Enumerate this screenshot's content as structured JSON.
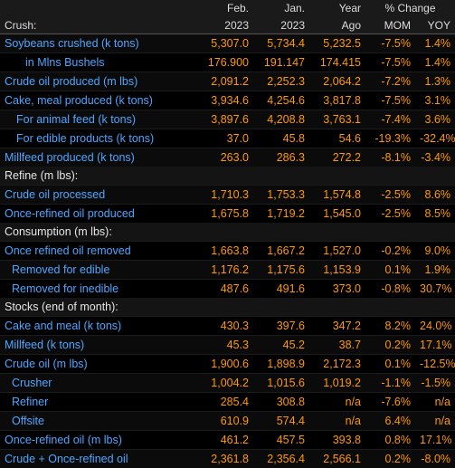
{
  "header": {
    "row1": [
      "",
      "Feb.",
      "Jan.",
      "Year",
      "% Change",
      ""
    ],
    "row2": [
      "Crush:",
      "2023",
      "2023",
      "Ago",
      "MOM",
      "YOY"
    ]
  },
  "rows": [
    {
      "type": "data",
      "indent": 0,
      "label": "Soybeans crushed (k tons)",
      "v": [
        "5,307.0",
        "5,734.4",
        "5,232.5",
        "-7.5%",
        "1.4%"
      ]
    },
    {
      "type": "data",
      "indent": 1,
      "label": "in Mlns Bushels",
      "v": [
        "176.900",
        "191.147",
        "174.415",
        "-7.5%",
        "1.4%"
      ]
    },
    {
      "type": "data",
      "indent": 0,
      "label": "Crude oil produced (m lbs)",
      "v": [
        "2,091.2",
        "2,252.3",
        "2,064.2",
        "-7.2%",
        "1.3%"
      ]
    },
    {
      "type": "data",
      "indent": 0,
      "label": "Cake, meal produced (k tons)",
      "v": [
        "3,934.6",
        "4,254.6",
        "3,817.8",
        "-7.5%",
        "3.1%"
      ]
    },
    {
      "type": "data",
      "indent": 2,
      "label": "For animal feed (k tons)",
      "v": [
        "3,897.6",
        "4,208.8",
        "3,763.1",
        "-7.4%",
        "3.6%"
      ]
    },
    {
      "type": "data",
      "indent": 2,
      "label": "For edible products (k tons)",
      "v": [
        "37.0",
        "45.8",
        "54.6",
        "-19.3%",
        "-32.4%"
      ]
    },
    {
      "type": "data",
      "indent": 0,
      "label": "Millfeed produced (k tons)",
      "v": [
        "263.0",
        "286.3",
        "272.2",
        "-8.1%",
        "-3.4%"
      ]
    },
    {
      "type": "section",
      "label": "Refine (m lbs):"
    },
    {
      "type": "data",
      "indent": 0,
      "label": "Crude oil processed",
      "v": [
        "1,710.3",
        "1,753.3",
        "1,574.8",
        "-2.5%",
        "8.6%"
      ]
    },
    {
      "type": "data",
      "indent": 0,
      "label": "Once-refined oil produced",
      "v": [
        "1,675.8",
        "1,719.2",
        "1,545.0",
        "-2.5%",
        "8.5%"
      ]
    },
    {
      "type": "section",
      "label": "Consumption (m lbs):"
    },
    {
      "type": "data",
      "indent": 0,
      "label": "Once refined oil removed",
      "v": [
        "1,663.8",
        "1,667.2",
        "1,527.0",
        "-0.2%",
        "9.0%"
      ]
    },
    {
      "type": "data",
      "indent": 3,
      "label": "Removed for edible",
      "v": [
        "1,176.2",
        "1,175.6",
        "1,153.9",
        "0.1%",
        "1.9%"
      ]
    },
    {
      "type": "data",
      "indent": 3,
      "label": "Removed for inedible",
      "v": [
        "487.6",
        "491.6",
        "373.0",
        "-0.8%",
        "30.7%"
      ]
    },
    {
      "type": "section",
      "label": "Stocks (end of month):"
    },
    {
      "type": "data",
      "indent": 0,
      "label": "Cake and meal (k tons)",
      "v": [
        "430.3",
        "397.6",
        "347.2",
        "8.2%",
        "24.0%"
      ]
    },
    {
      "type": "data",
      "indent": 0,
      "label": "Millfeed (k tons)",
      "v": [
        "45.3",
        "45.2",
        "38.7",
        "0.2%",
        "17.1%"
      ]
    },
    {
      "type": "data",
      "indent": 0,
      "label": "Crude oil (m lbs)",
      "v": [
        "1,900.6",
        "1,898.9",
        "2,172.3",
        "0.1%",
        "-12.5%"
      ]
    },
    {
      "type": "data",
      "indent": 3,
      "label": "Crusher",
      "v": [
        "1,004.2",
        "1,015.6",
        "1,019.2",
        "-1.1%",
        "-1.5%"
      ]
    },
    {
      "type": "data",
      "indent": 3,
      "label": "Refiner",
      "v": [
        "285.4",
        "308.8",
        "n/a",
        "-7.6%",
        "n/a"
      ]
    },
    {
      "type": "data",
      "indent": 3,
      "label": "Offsite",
      "v": [
        "610.9",
        "574.4",
        "n/a",
        "6.4%",
        "n/a"
      ]
    },
    {
      "type": "data",
      "indent": 0,
      "label": "Once-refined oil (m lbs)",
      "v": [
        "461.2",
        "457.5",
        "393.8",
        "0.8%",
        "17.1%"
      ]
    },
    {
      "type": "data",
      "indent": 0,
      "label": "Crude + Once-refined oil",
      "v": [
        "2,361.8",
        "2,356.4",
        "2,566.1",
        "0.2%",
        "-8.0%"
      ]
    }
  ]
}
